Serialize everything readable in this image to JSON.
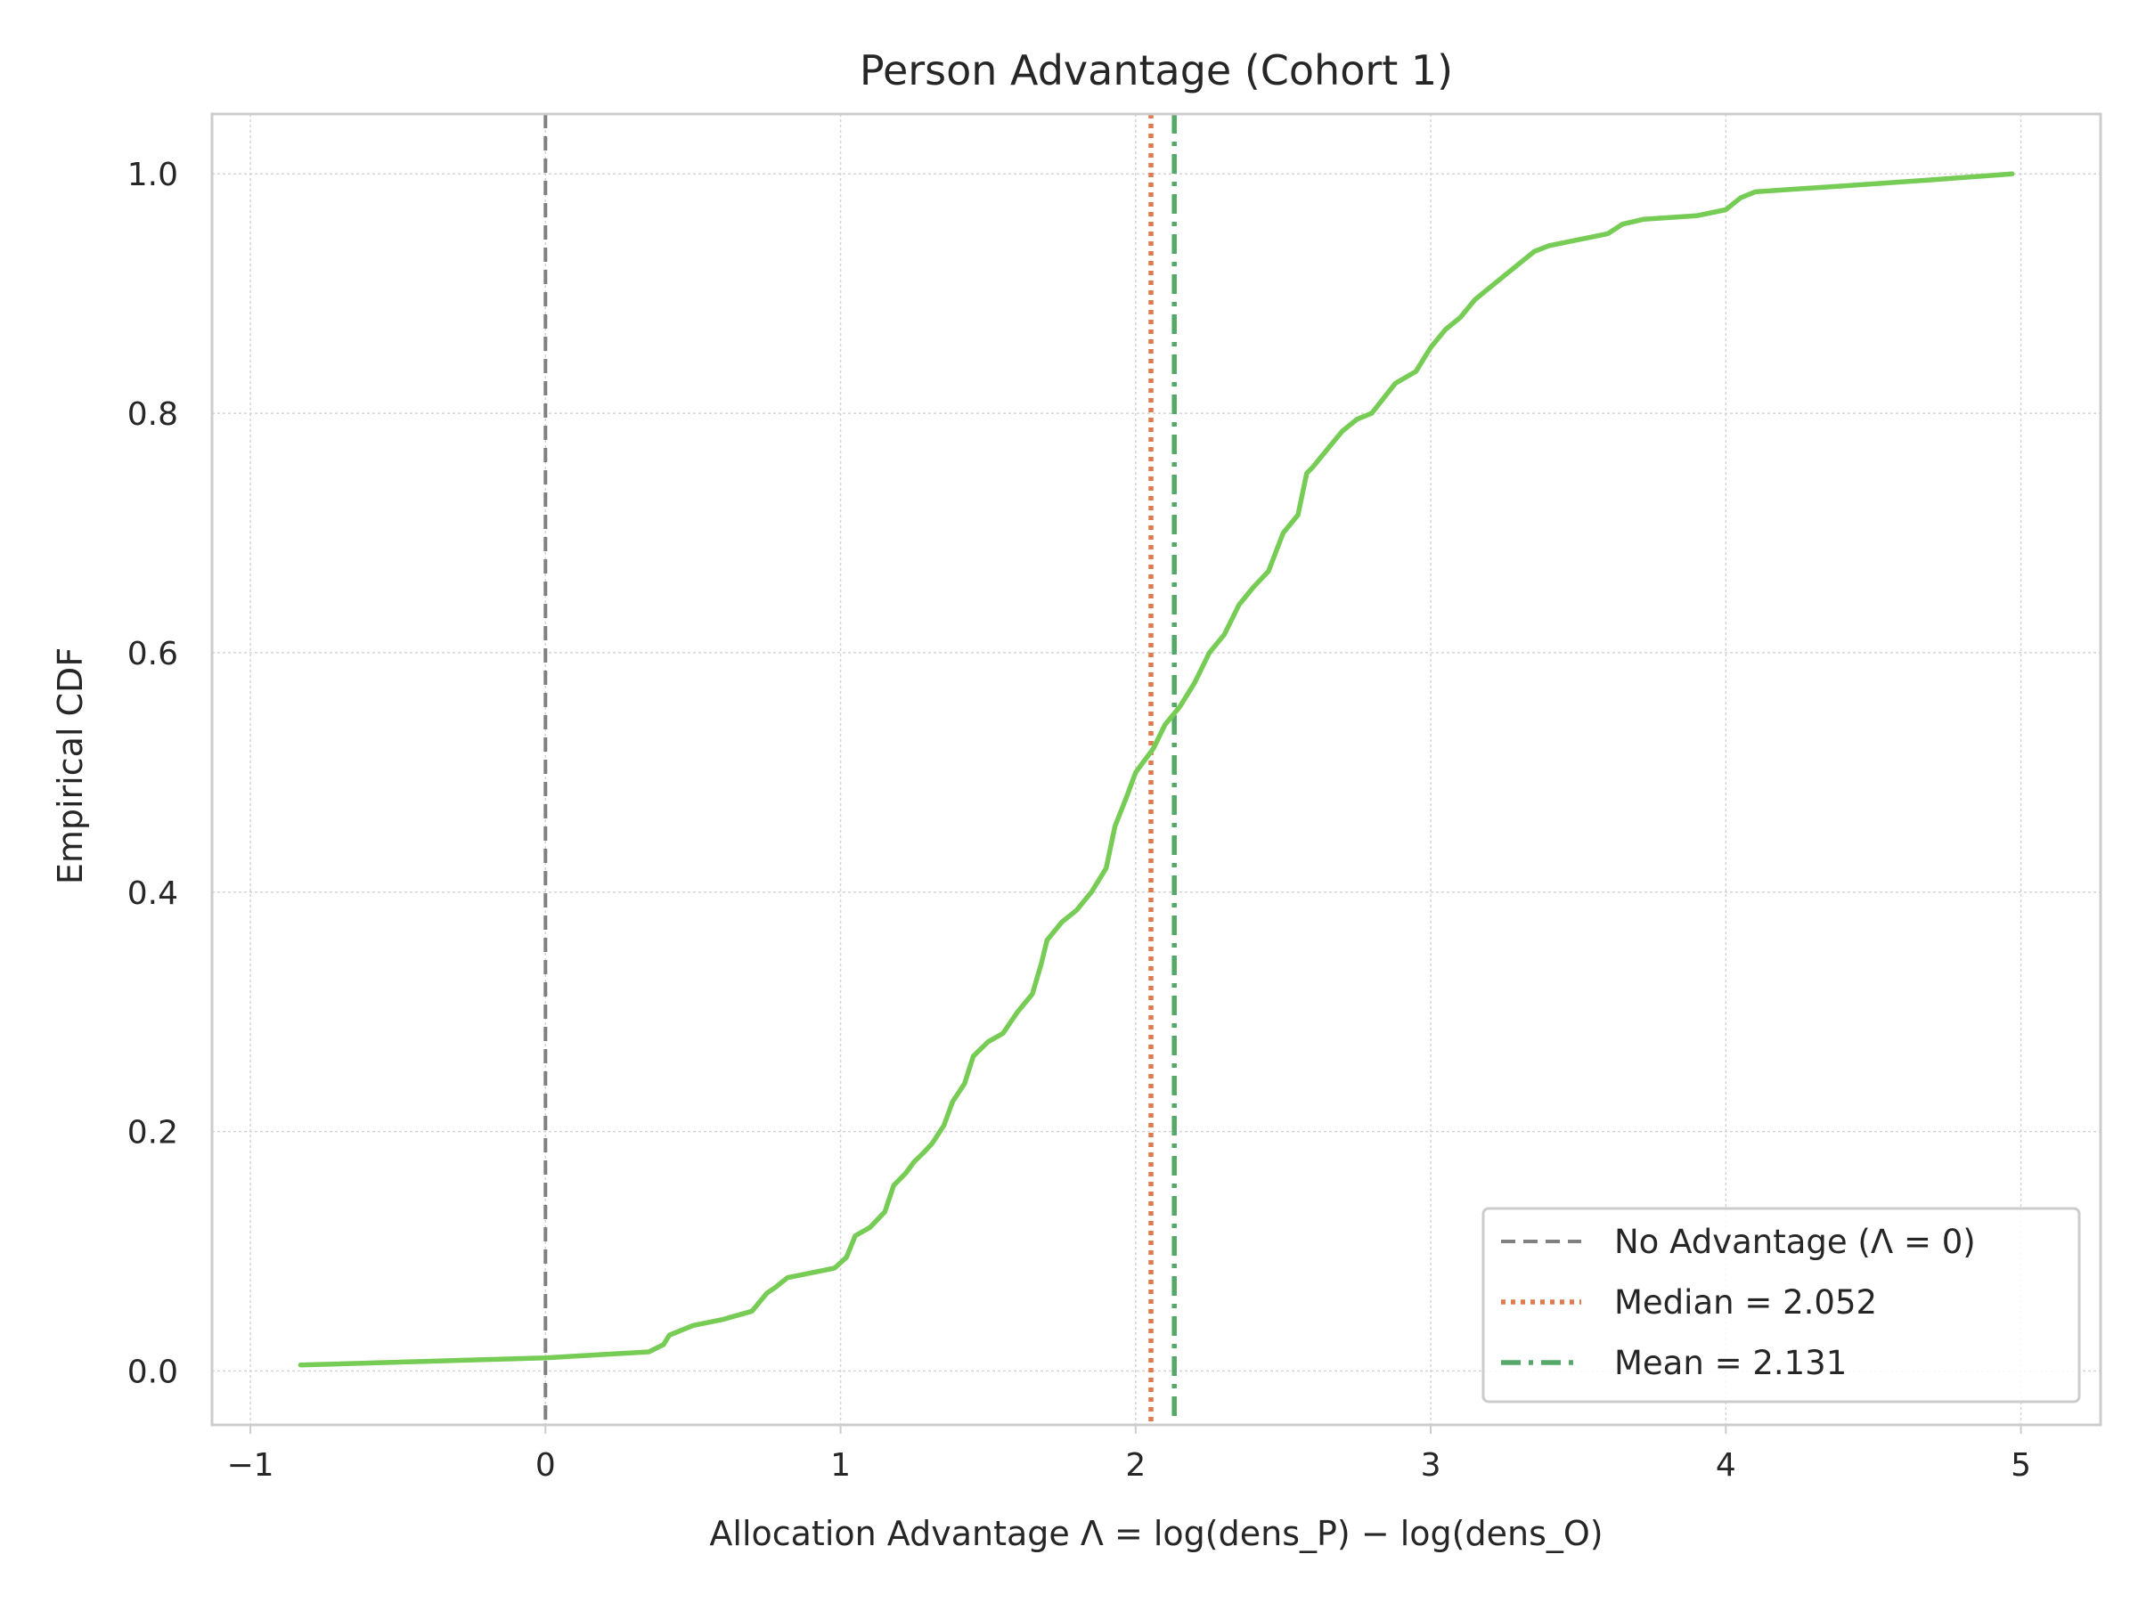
{
  "chart_data": {
    "type": "line",
    "title": "Person Advantage (Cohort 1)",
    "xlabel": "Allocation Advantage Λ = log(dens_P) − log(dens_O)",
    "ylabel": "Empirical CDF",
    "xlim": [
      -1.13,
      5.27
    ],
    "ylim": [
      -0.045,
      1.05
    ],
    "x_ticks": [
      -1,
      0,
      1,
      2,
      3,
      4,
      5
    ],
    "x_tick_labels": [
      "−1",
      "0",
      "1",
      "2",
      "3",
      "4",
      "5"
    ],
    "y_ticks": [
      0.0,
      0.2,
      0.4,
      0.6,
      0.8,
      1.0
    ],
    "y_tick_labels": [
      "0.0",
      "0.2",
      "0.4",
      "0.6",
      "0.8",
      "1.0"
    ],
    "grid": true,
    "legend_position": "bottom-right",
    "series": [
      {
        "name": "",
        "color": "#77cc55",
        "x": [
          -0.83,
          0.0,
          0.35,
          0.4,
          0.42,
          0.5,
          0.6,
          0.7,
          0.75,
          0.78,
          0.82,
          0.9,
          0.98,
          1.02,
          1.05,
          1.1,
          1.15,
          1.18,
          1.22,
          1.25,
          1.28,
          1.31,
          1.35,
          1.38,
          1.42,
          1.45,
          1.5,
          1.55,
          1.6,
          1.65,
          1.68,
          1.7,
          1.75,
          1.8,
          1.85,
          1.9,
          1.93,
          1.97,
          2.0,
          2.03,
          2.06,
          2.1,
          2.15,
          2.2,
          2.25,
          2.3,
          2.35,
          2.4,
          2.45,
          2.5,
          2.55,
          2.58,
          2.6,
          2.65,
          2.7,
          2.75,
          2.8,
          2.88,
          2.95,
          3.0,
          3.05,
          3.1,
          3.15,
          3.2,
          3.3,
          3.35,
          3.4,
          3.5,
          3.6,
          3.65,
          3.72,
          3.9,
          4.0,
          4.05,
          4.1,
          4.4,
          4.7,
          4.97
        ],
        "y": [
          0.005,
          0.011,
          0.016,
          0.022,
          0.03,
          0.038,
          0.043,
          0.05,
          0.065,
          0.07,
          0.078,
          0.082,
          0.086,
          0.095,
          0.113,
          0.12,
          0.133,
          0.155,
          0.165,
          0.175,
          0.182,
          0.19,
          0.205,
          0.225,
          0.24,
          0.263,
          0.275,
          0.282,
          0.3,
          0.315,
          0.34,
          0.36,
          0.375,
          0.385,
          0.4,
          0.42,
          0.455,
          0.48,
          0.5,
          0.51,
          0.52,
          0.54,
          0.555,
          0.575,
          0.6,
          0.615,
          0.64,
          0.655,
          0.668,
          0.7,
          0.715,
          0.75,
          0.755,
          0.77,
          0.785,
          0.795,
          0.8,
          0.825,
          0.835,
          0.855,
          0.87,
          0.88,
          0.895,
          0.905,
          0.925,
          0.935,
          0.94,
          0.945,
          0.95,
          0.958,
          0.962,
          0.965,
          0.97,
          0.98,
          0.985,
          0.99,
          0.995,
          1.0
        ]
      }
    ],
    "reference_lines": [
      {
        "label": "No Advantage (Λ = 0)",
        "x": 0.0,
        "color": "#808080",
        "style": "dashed"
      },
      {
        "label": "Median = 2.052",
        "x": 2.052,
        "color": "#e07b4f",
        "style": "dotted"
      },
      {
        "label": "Mean = 2.131",
        "x": 2.131,
        "color": "#55a868",
        "style": "dashdot"
      }
    ]
  }
}
